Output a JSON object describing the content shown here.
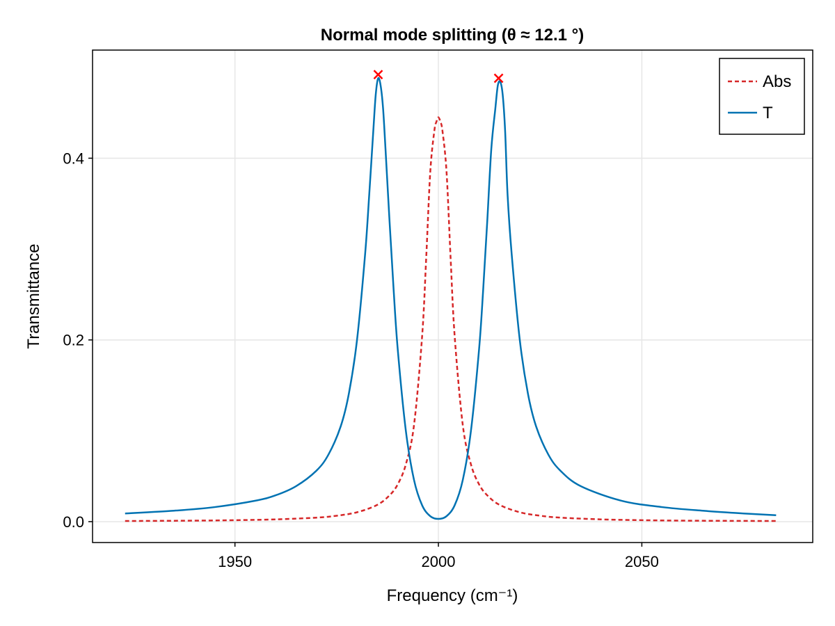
{
  "chart_data": {
    "type": "line",
    "title": "Normal mode splitting (θ ≈ 12.1 °)",
    "xlabel": "Frequency  (cm⁻¹)",
    "ylabel": "Transmittance",
    "xlim": [
      1915,
      2092
    ],
    "ylim": [
      -0.023,
      0.519
    ],
    "x_ticks": [
      1950,
      2000,
      2050
    ],
    "y_ticks": [
      0.0,
      0.2,
      0.4
    ],
    "x_tick_labels": [
      "1950",
      "2000",
      "2050"
    ],
    "y_tick_labels": [
      "0.0",
      "0.2",
      "0.4"
    ],
    "grid": true,
    "legend_position": "top-right",
    "series": [
      {
        "name": "Abs",
        "style": "dashed",
        "color": "#d62728",
        "x": [
          1923,
          1940,
          1950,
          1960,
          1970,
          1975,
          1980,
          1985,
          1988,
          1990,
          1992,
          1994,
          1996,
          1997,
          1998,
          1999,
          1999.5,
          2000,
          2000.5,
          2001,
          2002,
          2003,
          2004,
          2006,
          2008,
          2010,
          2012,
          2015,
          2020,
          2025,
          2030,
          2040,
          2050,
          2060,
          2070,
          2083
        ],
        "y": [
          0.0007,
          0.0011,
          0.0016,
          0.0025,
          0.0044,
          0.0065,
          0.0103,
          0.0185,
          0.029,
          0.041,
          0.063,
          0.106,
          0.204,
          0.29,
          0.385,
          0.43,
          0.44,
          0.445,
          0.44,
          0.43,
          0.385,
          0.29,
          0.204,
          0.106,
          0.063,
          0.041,
          0.029,
          0.0185,
          0.0103,
          0.0065,
          0.0044,
          0.0025,
          0.0016,
          0.0011,
          0.0009,
          0.0007
        ]
      },
      {
        "name": "T",
        "style": "solid",
        "color": "#0072b2",
        "x": [
          1923,
          1935,
          1945,
          1955,
          1960,
          1965,
          1970,
          1973,
          1976,
          1978,
          1980,
          1982,
          1983,
          1984,
          1984.6,
          1985.2,
          1985.8,
          1986.4,
          1987,
          1988,
          1989,
          1990,
          1992,
          1994,
          1996,
          1998,
          2000,
          2002,
          2004,
          2006,
          2008,
          2010,
          2011,
          2012,
          2013,
          2014,
          2014.6,
          2015.2,
          2015.8,
          2016.4,
          2017,
          2018,
          2020,
          2022,
          2024,
          2027,
          2030,
          2035,
          2045,
          2055,
          2065,
          2075,
          2083
        ],
        "y": [
          0.009,
          0.012,
          0.016,
          0.023,
          0.029,
          0.039,
          0.056,
          0.074,
          0.105,
          0.141,
          0.2,
          0.295,
          0.36,
          0.43,
          0.47,
          0.488,
          0.48,
          0.455,
          0.41,
          0.33,
          0.255,
          0.19,
          0.1,
          0.046,
          0.018,
          0.006,
          0.003,
          0.006,
          0.018,
          0.046,
          0.1,
          0.19,
          0.255,
          0.33,
          0.41,
          0.455,
          0.48,
          0.484,
          0.47,
          0.43,
          0.36,
          0.295,
          0.2,
          0.141,
          0.105,
          0.074,
          0.056,
          0.039,
          0.023,
          0.016,
          0.012,
          0.009,
          0.007
        ]
      }
    ],
    "markers": {
      "symbol": "x",
      "color": "#ff0000",
      "x": [
        1985.2,
        2014.8
      ],
      "y": [
        0.492,
        0.488
      ]
    },
    "colors": {
      "grid": "#e6e6e6",
      "frame": "#000000"
    }
  }
}
